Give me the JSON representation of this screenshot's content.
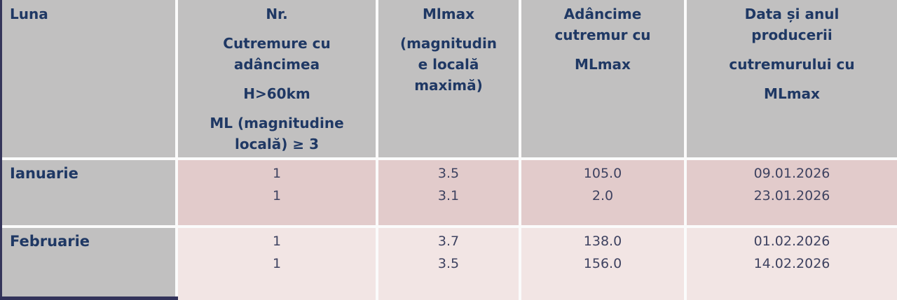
{
  "table": {
    "headers": {
      "luna": "Luna",
      "nr": {
        "p1": [
          "Nr."
        ],
        "p2": [
          "Cutremure cu",
          "adâncimea"
        ],
        "p3": [
          "H>60km"
        ],
        "p4": [
          "ML (magnitudine",
          "locală) ≥ 3"
        ]
      },
      "mlmax": {
        "p1": [
          "Mlmax"
        ],
        "p2": [
          "(magnitudin",
          "e locală",
          "maximă)"
        ]
      },
      "adancime": {
        "p1": [
          "Adâncime",
          "cutremur cu"
        ],
        "p2": [
          "MLmax"
        ]
      },
      "data": {
        "p1": [
          "Data și anul",
          "producerii"
        ],
        "p2": [
          "cutremurului cu"
        ],
        "p3": [
          "MLmax"
        ]
      }
    },
    "rows": [
      {
        "month": "Ianuarie",
        "nr": [
          "1",
          "1"
        ],
        "mlmax": [
          "3.5",
          "3.1"
        ],
        "depth": [
          "105.0",
          "2.0"
        ],
        "date": [
          "09.01.2026",
          "23.01.2026"
        ]
      },
      {
        "month": "Februarie",
        "nr": [
          "1",
          "1"
        ],
        "mlmax": [
          "3.7",
          "3.5"
        ],
        "depth": [
          "138.0",
          "156.0"
        ],
        "date": [
          "01.02.2026",
          "14.02.2026"
        ]
      }
    ]
  },
  "colors": {
    "header_bg": "#c1c0c0",
    "month_col_bg": "#c1c0c0",
    "row1_bg": "#e2cbcb",
    "row2_bg": "#f2e5e4",
    "header_text": "#1f3864",
    "value_text": "#3e4260",
    "separator": "#fbfbfb",
    "accent_navy": "#32325a"
  }
}
